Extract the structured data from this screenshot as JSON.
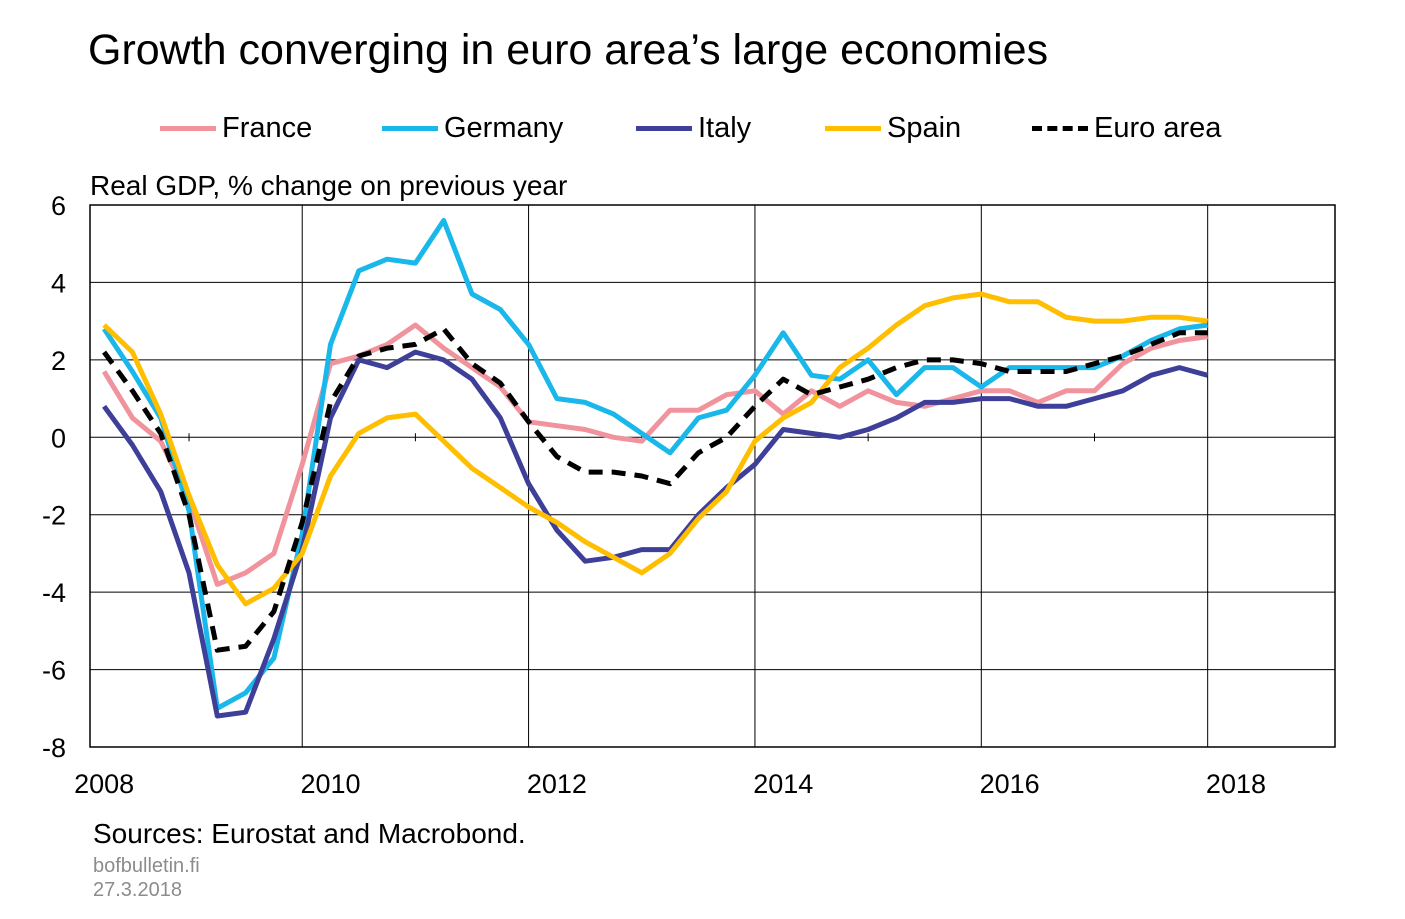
{
  "title": "Growth converging in euro area’s large economies",
  "source": "Sources: Eurostat and Macrobond.",
  "website": "bofbulletin.fi",
  "date": "27.3.2018",
  "chart_data": {
    "type": "line",
    "ylabel": "Real GDP, % change on previous year",
    "xlabel": "",
    "ylim": [
      -8,
      6
    ],
    "xlim": [
      2008,
      2019
    ],
    "yticks": [
      "6",
      "4",
      "2",
      "0",
      "-2",
      "-4",
      "-6",
      "-8"
    ],
    "xticks": [
      "2008",
      "2010",
      "2012",
      "2014",
      "2016",
      "2018"
    ],
    "grid": true,
    "legend_position": "top",
    "x": [
      "2008 Q1",
      "2008 Q2",
      "2008 Q3",
      "2008 Q4",
      "2009 Q1",
      "2009 Q2",
      "2009 Q3",
      "2009 Q4",
      "2010 Q1",
      "2010 Q2",
      "2010 Q3",
      "2010 Q4",
      "2011 Q1",
      "2011 Q2",
      "2011 Q3",
      "2011 Q4",
      "2012 Q1",
      "2012 Q2",
      "2012 Q3",
      "2012 Q4",
      "2013 Q1",
      "2013 Q2",
      "2013 Q3",
      "2013 Q4",
      "2014 Q1",
      "2014 Q2",
      "2014 Q3",
      "2014 Q4",
      "2015 Q1",
      "2015 Q2",
      "2015 Q3",
      "2015 Q4",
      "2016 Q1",
      "2016 Q2",
      "2016 Q3",
      "2016 Q4",
      "2017 Q1",
      "2017 Q2",
      "2017 Q3",
      "2017 Q4"
    ],
    "series": [
      {
        "name": "France",
        "color": "#f0939d",
        "dashed": false,
        "values": [
          1.7,
          0.5,
          -0.1,
          -1.6,
          -3.8,
          -3.5,
          -3.0,
          -0.7,
          1.9,
          2.1,
          2.4,
          2.9,
          2.3,
          1.8,
          1.3,
          0.4,
          0.3,
          0.2,
          0.0,
          -0.1,
          0.7,
          0.7,
          1.1,
          1.2,
          0.6,
          1.2,
          0.8,
          1.2,
          0.9,
          0.8,
          1.0,
          1.2,
          1.2,
          0.9,
          1.2,
          1.2,
          1.9,
          2.3,
          2.5,
          2.6
        ]
      },
      {
        "name": "Germany",
        "color": "#1ab7ea",
        "dashed": false,
        "values": [
          2.8,
          1.7,
          0.5,
          -1.9,
          -7.0,
          -6.6,
          -5.7,
          -2.5,
          2.4,
          4.3,
          4.6,
          4.5,
          5.6,
          3.7,
          3.3,
          2.4,
          1.0,
          0.9,
          0.6,
          0.1,
          -0.4,
          0.5,
          0.7,
          1.6,
          2.7,
          1.6,
          1.5,
          2.0,
          1.1,
          1.8,
          1.8,
          1.3,
          1.8,
          1.8,
          1.8,
          1.8,
          2.1,
          2.5,
          2.8,
          2.9
        ]
      },
      {
        "name": "Italy",
        "color": "#3d3f99",
        "dashed": false,
        "values": [
          0.8,
          -0.2,
          -1.4,
          -3.5,
          -7.2,
          -7.1,
          -5.2,
          -2.9,
          0.5,
          2.0,
          1.8,
          2.2,
          2.0,
          1.5,
          0.5,
          -1.2,
          -2.4,
          -3.2,
          -3.1,
          -2.9,
          -2.9,
          -2.0,
          -1.3,
          -0.7,
          0.2,
          0.1,
          0.0,
          0.2,
          0.5,
          0.9,
          0.9,
          1.0,
          1.0,
          0.8,
          0.8,
          1.0,
          1.2,
          1.6,
          1.8,
          1.6
        ]
      },
      {
        "name": "Spain",
        "color": "#ffbe00",
        "dashed": false,
        "values": [
          2.9,
          2.2,
          0.6,
          -1.5,
          -3.3,
          -4.3,
          -3.9,
          -3.0,
          -1.0,
          0.1,
          0.5,
          0.6,
          -0.1,
          -0.8,
          -1.3,
          -1.8,
          -2.2,
          -2.7,
          -3.1,
          -3.5,
          -3.0,
          -2.1,
          -1.4,
          -0.1,
          0.5,
          0.9,
          1.8,
          2.3,
          2.9,
          3.4,
          3.6,
          3.7,
          3.5,
          3.5,
          3.1,
          3.0,
          3.0,
          3.1,
          3.1,
          3.0
        ]
      },
      {
        "name": "Euro area",
        "color": "#000000",
        "dashed": true,
        "values": [
          2.2,
          1.2,
          0.1,
          -2.0,
          -5.5,
          -5.4,
          -4.5,
          -2.2,
          0.9,
          2.1,
          2.3,
          2.4,
          2.8,
          1.9,
          1.4,
          0.4,
          -0.5,
          -0.9,
          -0.9,
          -1.0,
          -1.2,
          -0.4,
          0.0,
          0.8,
          1.5,
          1.1,
          1.3,
          1.5,
          1.8,
          2.0,
          2.0,
          1.9,
          1.7,
          1.7,
          1.7,
          1.9,
          2.1,
          2.4,
          2.7,
          2.7
        ]
      }
    ]
  }
}
